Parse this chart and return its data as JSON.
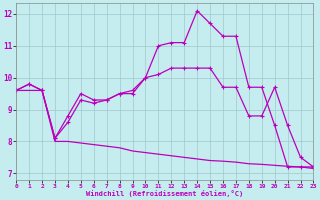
{
  "title": "",
  "xlabel": "Windchill (Refroidissement éolien,°C)",
  "ylabel": "",
  "background_color": "#c5edf0",
  "line_color": "#bb00bb",
  "grid_color": "#a0c8cc",
  "x_values": [
    0,
    1,
    2,
    3,
    4,
    5,
    6,
    7,
    8,
    9,
    10,
    11,
    12,
    13,
    14,
    15,
    16,
    17,
    18,
    19,
    20,
    21,
    22,
    23
  ],
  "line1": [
    9.6,
    9.8,
    9.6,
    8.1,
    8.8,
    9.5,
    9.3,
    9.3,
    9.5,
    9.5,
    10.0,
    11.0,
    11.1,
    11.1,
    12.1,
    11.7,
    11.3,
    11.3,
    9.7,
    9.7,
    8.5,
    7.2,
    7.2,
    7.2
  ],
  "line2": [
    9.6,
    9.8,
    9.6,
    8.1,
    8.6,
    9.3,
    9.2,
    9.3,
    9.5,
    9.6,
    10.0,
    10.1,
    10.3,
    10.3,
    10.3,
    10.3,
    9.7,
    9.7,
    8.8,
    8.8,
    9.7,
    8.5,
    7.5,
    7.2
  ],
  "line3": [
    9.6,
    9.6,
    9.6,
    8.0,
    8.0,
    7.95,
    7.9,
    7.85,
    7.8,
    7.7,
    7.65,
    7.6,
    7.55,
    7.5,
    7.45,
    7.4,
    7.38,
    7.35,
    7.3,
    7.28,
    7.25,
    7.22,
    7.2,
    7.15
  ],
  "xlim": [
    0,
    23
  ],
  "ylim": [
    6.8,
    12.35
  ],
  "yticks": [
    7,
    8,
    9,
    10,
    11,
    12
  ],
  "xticks": [
    0,
    1,
    2,
    3,
    4,
    5,
    6,
    7,
    8,
    9,
    10,
    11,
    12,
    13,
    14,
    15,
    16,
    17,
    18,
    19,
    20,
    21,
    22,
    23
  ]
}
